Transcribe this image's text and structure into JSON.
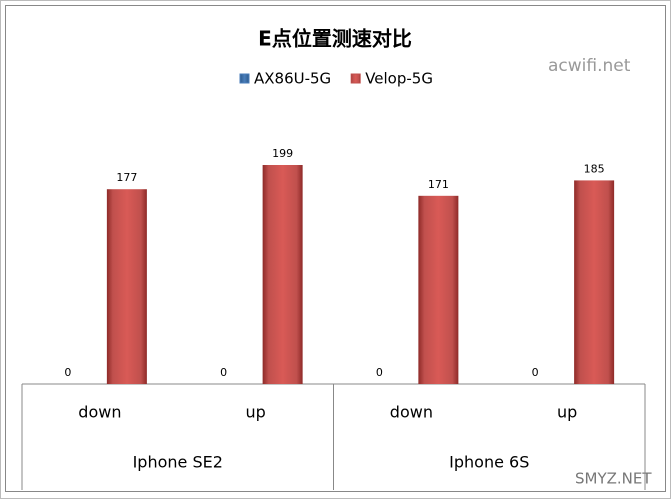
{
  "chart_data": {
    "type": "bar",
    "title": "E点位置测速对比",
    "categories": [
      "down",
      "up",
      "down",
      "up"
    ],
    "groups": [
      "Iphone SE2",
      "Iphone 6S"
    ],
    "series": [
      {
        "name": "AX86U-5G",
        "color": "#4a7ebb",
        "values": [
          0,
          0,
          0,
          0
        ]
      },
      {
        "name": "Velop-5G",
        "color": "#c0504d",
        "values": [
          177,
          199,
          171,
          185
        ]
      }
    ],
    "legend": "top"
  },
  "watermarks": [
    "acwifi.net",
    "SMYZ.NET"
  ]
}
